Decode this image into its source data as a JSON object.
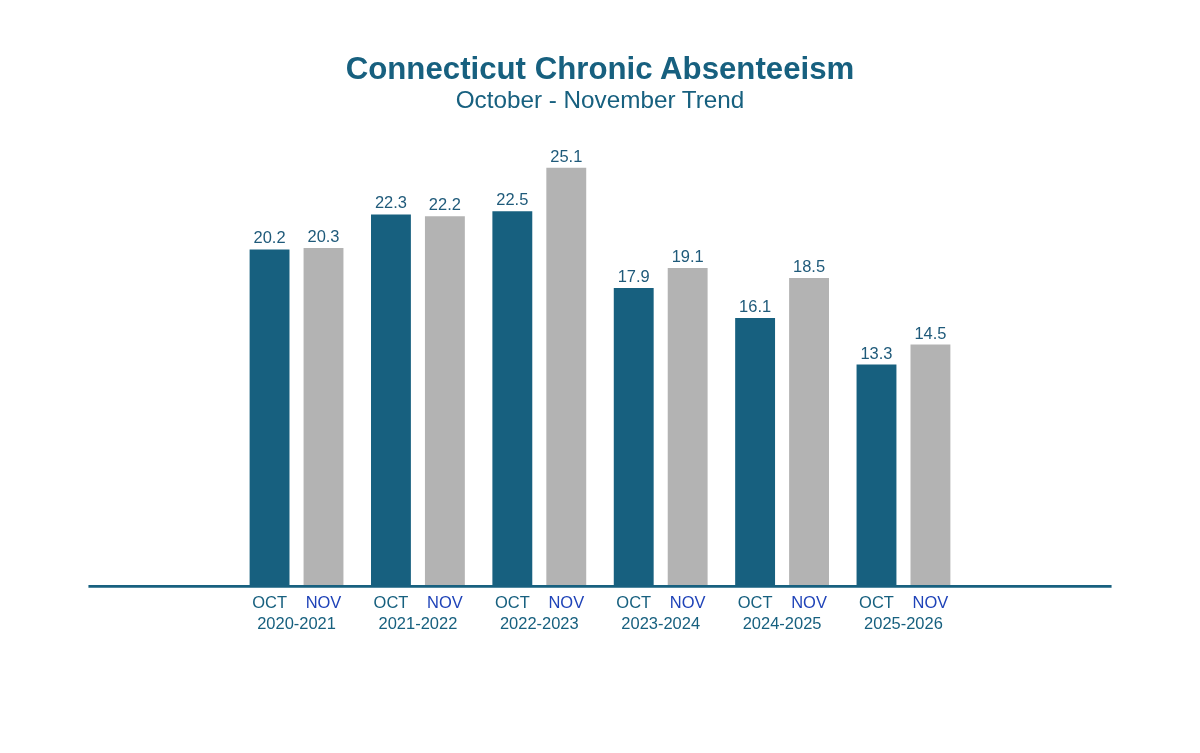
{
  "chart_data": {
    "type": "bar",
    "title": "Connecticut Chronic Absenteeism",
    "subtitle": "October - November Trend",
    "categories": [
      "2020-2021",
      "2021-2022",
      "2022-2023",
      "2023-2024",
      "2024-2025",
      "2025-2026"
    ],
    "series": [
      {
        "name": "OCT",
        "color": "#17607f",
        "values": [
          20.2,
          22.3,
          22.5,
          17.9,
          16.1,
          13.3
        ]
      },
      {
        "name": "NOV",
        "color": "#b3b3b3",
        "values": [
          20.3,
          22.2,
          25.1,
          19.1,
          18.5,
          14.5
        ]
      }
    ],
    "data_labels": true,
    "legend": false,
    "grid": false,
    "tick_labels": "x"
  }
}
